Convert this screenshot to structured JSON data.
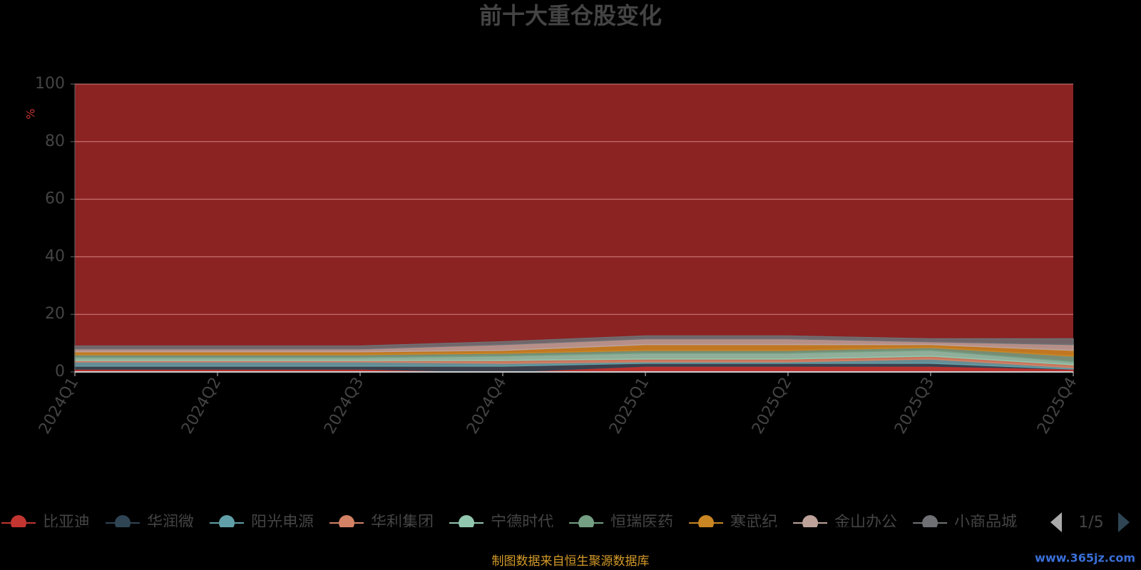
{
  "chart_data": {
    "type": "stacked_area",
    "title": "前十大重仓股变化",
    "y_label": "%",
    "categories": [
      "2024Q1",
      "2024Q2",
      "2024Q3",
      "2024Q4",
      "2025Q1",
      "2025Q2",
      "2025Q3",
      "2025Q4"
    ],
    "series": [
      {
        "name": "比亚迪",
        "color": "#c23531",
        "values": [
          1,
          1,
          1,
          0,
          2,
          2,
          2,
          1
        ]
      },
      {
        "name": "华润微",
        "color": "#2f4554",
        "values": [
          1,
          1,
          1,
          2,
          1,
          1,
          1,
          0
        ]
      },
      {
        "name": "阳光电源",
        "color": "#61a0a8",
        "values": [
          1.5,
          1.5,
          1.5,
          1,
          0.5,
          0.5,
          1.5,
          0.5
        ]
      },
      {
        "name": "华利集团",
        "color": "#d48265",
        "values": [
          0.5,
          0.5,
          0.5,
          1,
          1,
          1,
          1,
          1
        ]
      },
      {
        "name": "宁德时代",
        "color": "#91c7ae",
        "values": [
          1,
          1,
          1,
          1.5,
          2,
          2,
          2,
          1
        ]
      },
      {
        "name": "恒瑞医药",
        "color": "#749f83",
        "values": [
          1,
          1,
          1,
          1,
          1,
          1,
          1,
          2
        ]
      },
      {
        "name": "寒武纪",
        "color": "#ca8622",
        "values": [
          1,
          1,
          1,
          1,
          2,
          2,
          1,
          2
        ]
      },
      {
        "name": "金山办公",
        "color": "#bda29a",
        "values": [
          1,
          1,
          1,
          2,
          2,
          2,
          1,
          2
        ]
      },
      {
        "name": "小商品城",
        "color": "#6e7074",
        "values": [
          1,
          1,
          1,
          1,
          1,
          1,
          1,
          2
        ]
      }
    ],
    "ylim": [
      0,
      100
    ],
    "yticks": [
      0,
      20,
      40,
      60,
      80,
      100
    ],
    "grid": true,
    "legend_page": "1/5",
    "source": "制图数据来自恒生聚源数据库",
    "watermark": "www.365jz.com"
  }
}
